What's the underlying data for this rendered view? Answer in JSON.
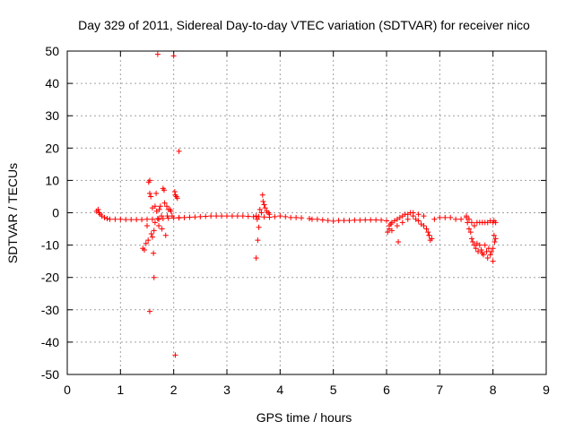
{
  "chart_data": {
    "type": "scatter",
    "title": "Day 329 of 2011, Sidereal Day-to-day VTEC variation (SDTVAR) for receiver nico",
    "xlabel": "GPS time / hours",
    "ylabel": "SDTVAR / TECUs",
    "xlim": [
      0,
      9
    ],
    "ylim": [
      -50,
      50
    ],
    "xticks": [
      0,
      1,
      2,
      3,
      4,
      5,
      6,
      7,
      8,
      9
    ],
    "yticks": [
      -50,
      -40,
      -30,
      -20,
      -10,
      0,
      10,
      20,
      30,
      40,
      50
    ],
    "grid": true,
    "marker": "plus",
    "series": [
      {
        "name": "SDTVAR",
        "color": "#ff0000",
        "x": [
          0.55,
          0.58,
          0.6,
          0.62,
          0.65,
          0.7,
          0.75,
          0.8,
          0.9,
          1.0,
          1.1,
          1.2,
          1.3,
          1.4,
          1.5,
          1.6,
          1.7,
          1.8,
          1.9,
          2.0,
          2.1,
          2.2,
          2.3,
          2.4,
          2.5,
          2.6,
          2.7,
          2.8,
          2.9,
          3.0,
          3.1,
          3.2,
          3.3,
          3.4,
          3.5,
          3.6,
          3.7,
          3.8,
          3.9,
          4.0,
          4.1,
          4.2,
          4.3,
          4.4,
          4.55,
          4.6,
          4.7,
          4.8,
          4.9,
          5.0,
          5.1,
          5.2,
          5.3,
          5.4,
          5.5,
          5.6,
          5.7,
          5.8,
          5.9,
          6.0,
          6.05,
          6.1,
          6.2,
          6.3,
          6.4,
          6.5,
          6.6,
          6.7,
          6.75,
          6.8,
          6.85,
          6.9,
          7.0,
          7.1,
          7.2,
          7.3,
          7.4,
          7.5,
          7.55,
          7.6,
          7.65,
          7.7,
          7.75,
          7.8,
          7.85,
          7.9,
          7.95,
          8.0,
          8.02,
          8.05,
          1.42,
          1.45,
          1.48,
          1.5,
          1.52,
          1.53,
          1.55,
          1.55,
          1.57,
          1.58,
          1.6,
          1.6,
          1.62,
          1.63,
          1.65,
          1.65,
          1.67,
          1.68,
          1.7,
          1.72,
          1.73,
          1.75,
          1.77,
          1.78,
          1.8,
          1.82,
          1.83,
          1.85,
          1.87,
          1.88,
          1.9,
          1.93,
          1.95,
          2.0,
          2.02,
          2.03,
          2.05,
          2.07,
          2.1,
          1.72,
          1.97,
          2.1,
          2.03,
          1.55,
          1.63,
          3.55,
          3.58,
          3.6,
          3.62,
          3.65,
          3.67,
          3.68,
          3.7,
          3.72,
          3.75,
          3.78,
          3.8,
          3.55,
          3.57,
          6.22,
          7.5,
          7.52,
          7.55,
          7.58,
          7.6,
          7.62,
          7.65,
          7.68,
          7.7,
          7.72,
          7.75,
          7.78,
          7.8,
          7.82,
          7.85,
          7.88,
          7.9,
          7.92,
          7.95,
          7.97,
          8.0,
          8.0,
          8.02,
          8.03,
          8.05,
          6.55,
          6.6,
          6.65,
          6.7,
          6.75,
          6.78,
          6.8,
          6.82,
          6.02,
          6.05,
          6.08,
          6.1,
          6.15,
          6.2,
          6.25,
          6.3,
          6.35,
          6.4,
          6.45,
          6.5
        ],
        "y": [
          0.5,
          1.0,
          0.0,
          -0.5,
          -1.0,
          -1.5,
          -1.8,
          -2.0,
          -2.0,
          -2.0,
          -2.1,
          -2.1,
          -2.1,
          -2.1,
          -2.0,
          -2.0,
          -1.8,
          -1.8,
          -1.7,
          -1.6,
          -1.6,
          -1.5,
          -1.4,
          -1.3,
          -1.2,
          -1.1,
          -1.0,
          -1.0,
          -1.0,
          -1.0,
          -1.0,
          -1.0,
          -1.0,
          -1.1,
          -1.2,
          -1.2,
          -1.3,
          -1.4,
          -1.2,
          -1.0,
          -1.2,
          -1.5,
          -1.5,
          -1.6,
          -1.8,
          -2.0,
          -2.0,
          -2.2,
          -2.4,
          -2.6,
          -2.4,
          -2.4,
          -2.4,
          -2.3,
          -2.3,
          -2.2,
          -2.2,
          -2.2,
          -2.3,
          -2.5,
          -4.0,
          -5.5,
          -4.0,
          -3.0,
          -2.0,
          -1.0,
          -0.5,
          -1.0,
          -5.0,
          -7.0,
          -8.0,
          -2.0,
          -1.5,
          -1.5,
          -1.5,
          -2.0,
          -2.0,
          -1.0,
          -2.0,
          -3.0,
          -4.0,
          -3.0,
          -3.0,
          -3.0,
          -3.0,
          -3.0,
          -2.5,
          -3.0,
          -2.5,
          -3.0,
          -11.0,
          -11.5,
          -9.5,
          -4.0,
          -8.5,
          9.5,
          10.0,
          6.0,
          5.0,
          -6.5,
          -7.5,
          1.5,
          -12.5,
          -5.5,
          -3.0,
          2.0,
          6.0,
          0.5,
          49.0,
          -4.0,
          1.0,
          2.0,
          -1.0,
          -5.0,
          7.5,
          7.0,
          3.0,
          -7.0,
          2.0,
          -1.0,
          1.0,
          1.0,
          0.5,
          48.5,
          6.5,
          5.5,
          5.0,
          4.5,
          19.0,
          -2.0,
          -1.0,
          -1.5,
          -44.0,
          -30.5,
          -20.0,
          -14.0,
          -8.5,
          -4.5,
          1.0,
          0.0,
          5.5,
          3.5,
          2.5,
          1.5,
          0.5,
          0.0,
          -0.5,
          -1.0,
          -2.0,
          -9.0,
          -1.5,
          -3.0,
          -5.0,
          -6.0,
          -8.0,
          -9.0,
          -10.0,
          -11.0,
          -9.5,
          -12.0,
          -10.0,
          -11.5,
          -12.5,
          -13.0,
          -10.0,
          -12.0,
          -14.0,
          -11.0,
          -13.0,
          -12.0,
          -15.0,
          -11.0,
          -7.0,
          -9.0,
          -8.0,
          -2.0,
          -2.5,
          -3.5,
          -4.0,
          -5.0,
          -6.0,
          -7.0,
          -8.5,
          -6.0,
          -5.0,
          -3.5,
          -3.0,
          -2.5,
          -2.0,
          -1.5,
          -1.0,
          -0.5,
          -0.5,
          0.0,
          0.0
        ]
      }
    ]
  }
}
